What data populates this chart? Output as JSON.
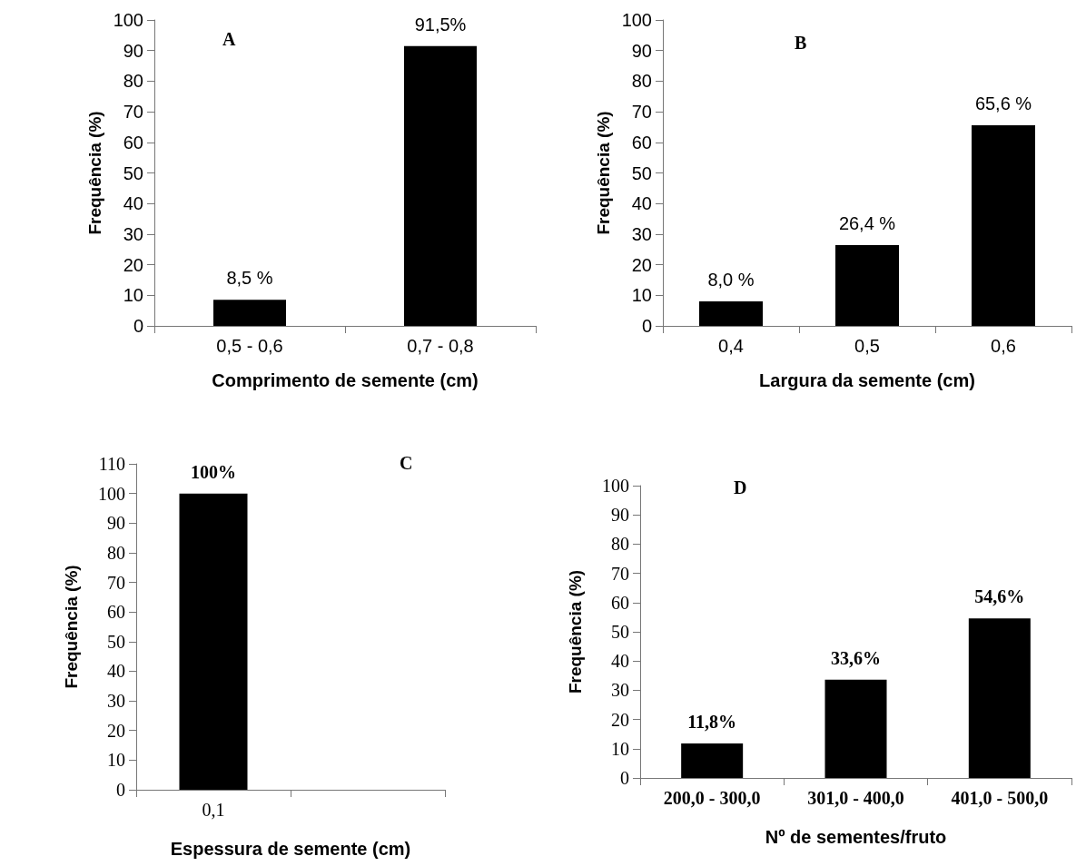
{
  "chart_data": [
    {
      "type": "bar",
      "title": "A",
      "xlabel": "Comprimento de semente (cm)",
      "ylabel": "Frequência (%)",
      "categories": [
        "0,5 - 0,6",
        "0,7 - 0,8"
      ],
      "values": [
        8.5,
        91.5
      ],
      "color": "#000000",
      "value_labels": [
        "8,5 %",
        "91,5%"
      ],
      "ylim": [
        0,
        100
      ],
      "yticks": [
        0,
        10,
        20,
        30,
        40,
        50,
        60,
        70,
        80,
        90,
        100
      ]
    },
    {
      "type": "bar",
      "title": "B",
      "xlabel": "Largura da semente (cm)",
      "ylabel": "Frequência (%)",
      "categories": [
        "0,4",
        "0,5",
        "0,6"
      ],
      "values": [
        8.0,
        26.4,
        65.6
      ],
      "color": "#000000",
      "value_labels": [
        "8,0 %",
        "26,4 %",
        "65,6 %"
      ],
      "ylim": [
        0,
        100
      ],
      "yticks": [
        0,
        10,
        20,
        30,
        40,
        50,
        60,
        70,
        80,
        90,
        100
      ]
    },
    {
      "type": "bar",
      "title": "C",
      "xlabel": "Espessura de semente (cm)",
      "ylabel": "Frequência (%)",
      "categories": [
        "0,1",
        null
      ],
      "values": [
        100,
        null
      ],
      "color": "#000000",
      "value_labels": [
        "100%",
        null
      ],
      "ylim": [
        0,
        110
      ],
      "yticks": [
        0,
        10,
        20,
        30,
        40,
        50,
        60,
        70,
        80,
        90,
        100,
        110
      ]
    },
    {
      "type": "bar",
      "title": "D",
      "xlabel": "Nº de sementes/fruto",
      "ylabel": "Frequência (%)",
      "categories": [
        "200,0 - 300,0",
        "301,0 - 400,0",
        "401,0 - 500,0"
      ],
      "values": [
        11.8,
        33.6,
        54.6
      ],
      "color": "#000000",
      "value_labels": [
        "11,8%",
        "33,6%",
        "54,6%"
      ],
      "ylim": [
        0,
        100
      ],
      "yticks": [
        0,
        10,
        20,
        30,
        40,
        50,
        60,
        70,
        80,
        90,
        100
      ]
    }
  ]
}
